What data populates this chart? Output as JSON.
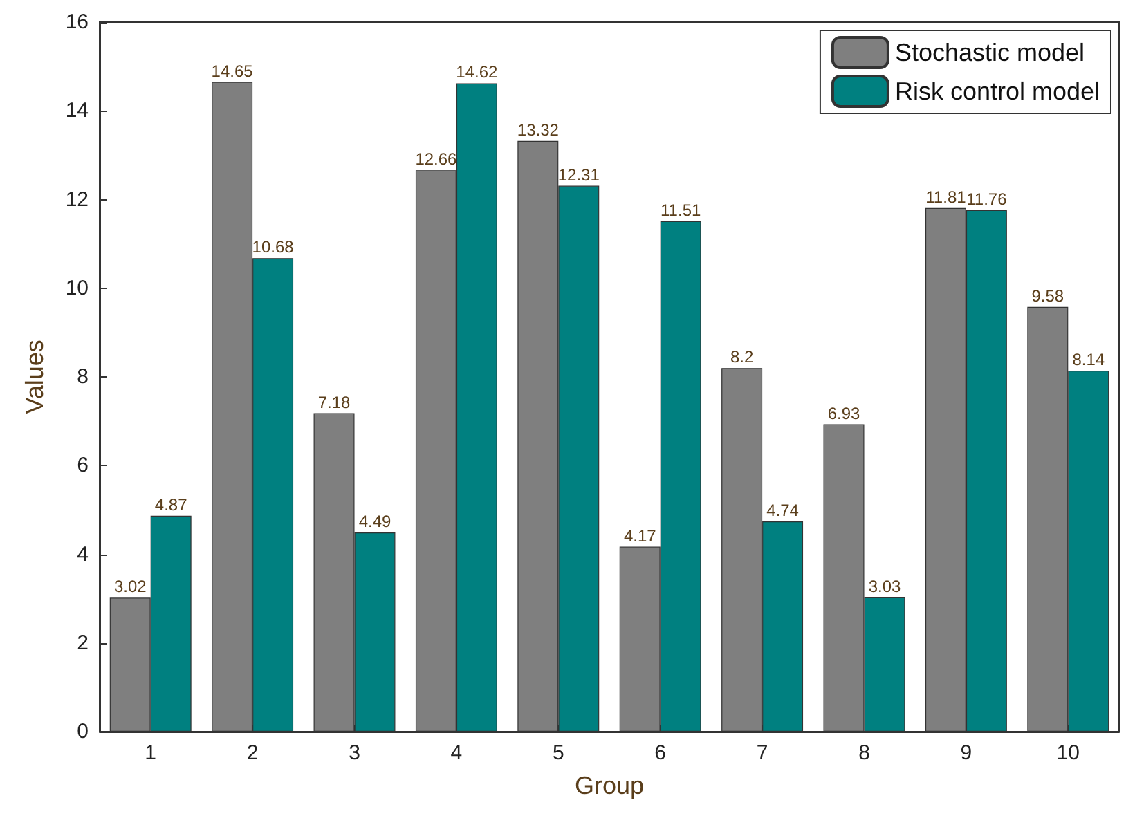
{
  "chart_data": {
    "type": "bar",
    "xlabel": "Group",
    "ylabel": "Values",
    "categories": [
      "1",
      "2",
      "3",
      "4",
      "5",
      "6",
      "7",
      "8",
      "9",
      "10"
    ],
    "series": [
      {
        "name": "Stochastic model",
        "color": "#7f7f7f",
        "values": [
          3.02,
          14.65,
          7.18,
          12.66,
          13.32,
          4.17,
          8.2,
          6.93,
          11.81,
          9.58
        ]
      },
      {
        "name": "Risk control model",
        "color": "#008080",
        "values": [
          4.87,
          10.68,
          4.49,
          14.62,
          12.31,
          11.51,
          4.74,
          3.03,
          11.76,
          8.14
        ]
      }
    ],
    "ylim": [
      0,
      16
    ],
    "yticks": [
      0,
      2,
      4,
      6,
      8,
      10,
      12,
      14,
      16
    ],
    "grid": false,
    "legend": "top right",
    "data_labels": true
  }
}
